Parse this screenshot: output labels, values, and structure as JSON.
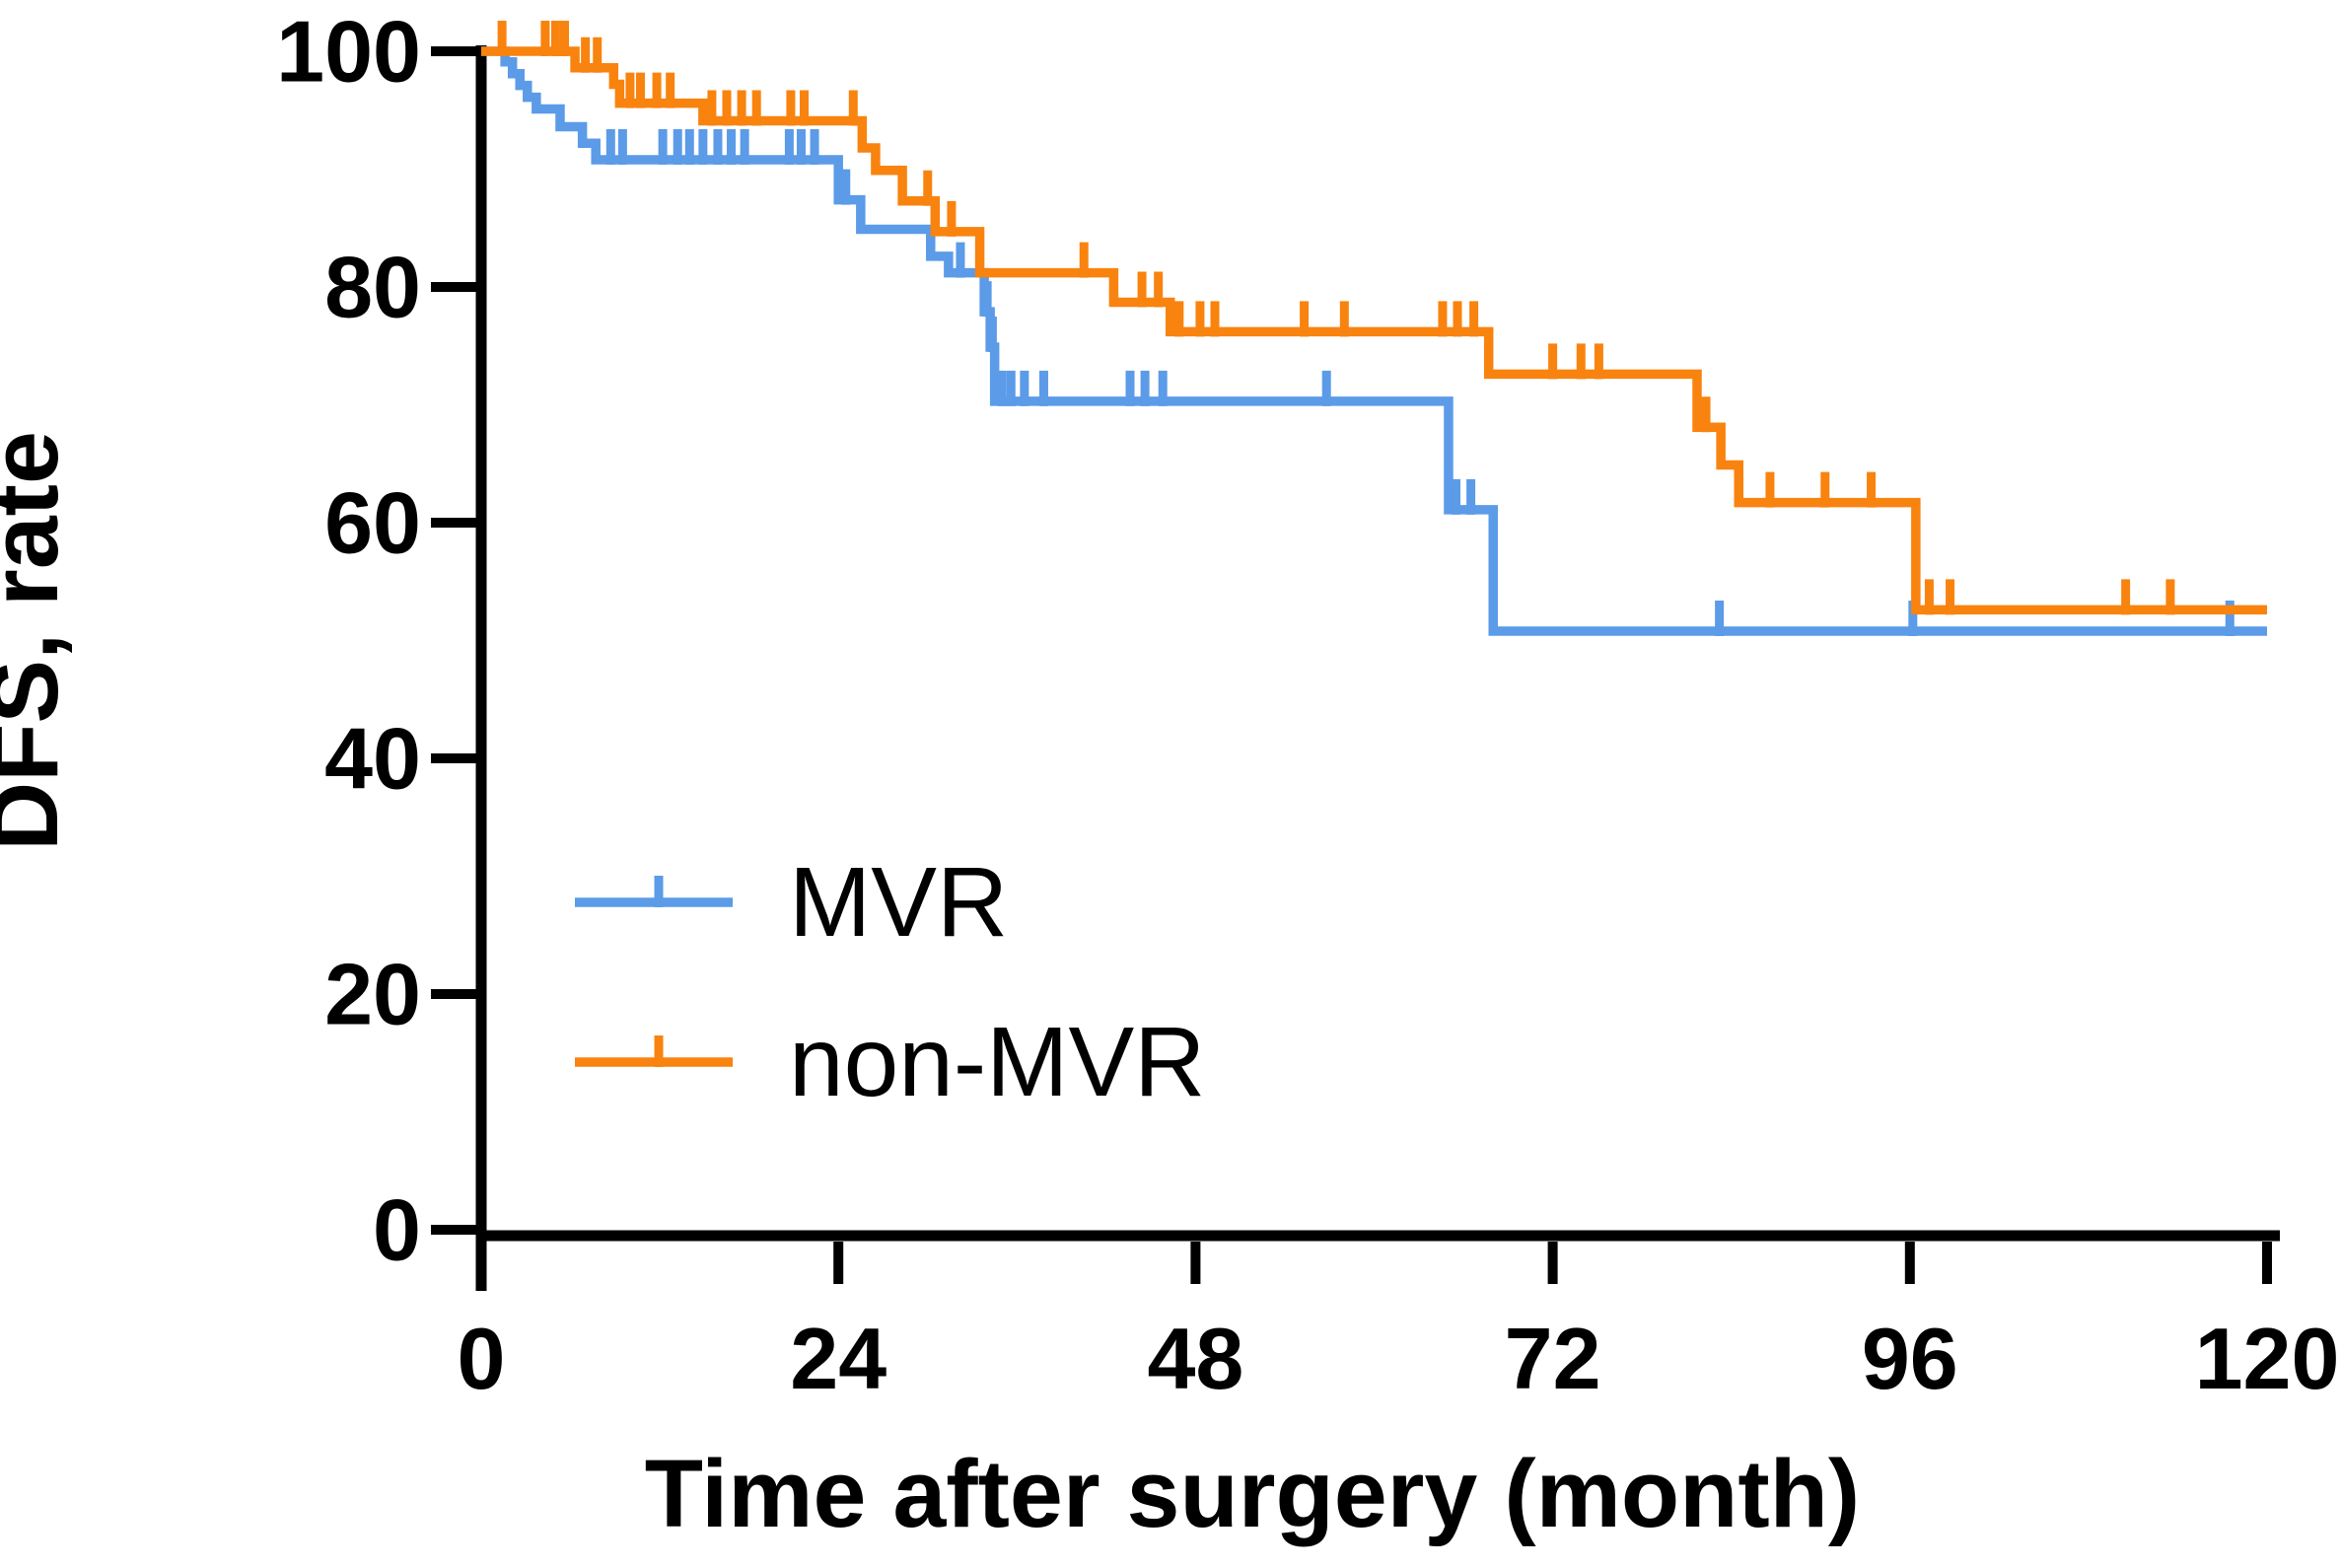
{
  "figure": {
    "description": "Kaplan-Meier disease-free survival curve comparing MVR and non-MVR groups"
  },
  "chart_data": {
    "type": "line",
    "subtype": "kaplan-meier-step",
    "title": "",
    "xlabel": "Time after surgery (month)",
    "ylabel": "DFS, rate",
    "xlim": [
      0,
      120
    ],
    "ylim": [
      0,
      100
    ],
    "x_ticks": [
      0,
      24,
      48,
      72,
      96,
      120
    ],
    "y_ticks": [
      0,
      20,
      40,
      60,
      80,
      100
    ],
    "grid": false,
    "legend_position": "inside-lower-left",
    "axis_color": "#000000",
    "series": [
      {
        "name": "MVR",
        "color": "#5B9BE8",
        "steps": [
          [
            0,
            100
          ],
          [
            1.6,
            99.1
          ],
          [
            2.1,
            98.1
          ],
          [
            2.6,
            97.1
          ],
          [
            3.1,
            96.1
          ],
          [
            3.7,
            95.1
          ],
          [
            5.3,
            93.6
          ],
          [
            6.8,
            92.2
          ],
          [
            7.7,
            90.8
          ],
          [
            24.0,
            87.4
          ],
          [
            25.5,
            84.9
          ],
          [
            30.2,
            82.6
          ],
          [
            31.4,
            81.2
          ],
          [
            33.8,
            77.9
          ],
          [
            34.2,
            74.9
          ],
          [
            34.5,
            70.3
          ],
          [
            65.0,
            61.1
          ],
          [
            68.0,
            50.8
          ],
          [
            120,
            50.8
          ]
        ],
        "censors": [
          [
            8.7,
            90.8
          ],
          [
            9.5,
            90.8
          ],
          [
            12.2,
            90.8
          ],
          [
            13.2,
            90.8
          ],
          [
            14.0,
            90.8
          ],
          [
            14.9,
            90.8
          ],
          [
            15.9,
            90.8
          ],
          [
            16.8,
            90.8
          ],
          [
            17.7,
            90.8
          ],
          [
            20.7,
            90.8
          ],
          [
            21.5,
            90.8
          ],
          [
            22.4,
            90.8
          ],
          [
            24.5,
            87.4
          ],
          [
            32.2,
            81.2
          ],
          [
            34.0,
            77.9
          ],
          [
            34.35,
            74.9
          ],
          [
            35.0,
            70.3
          ],
          [
            35.6,
            70.3
          ],
          [
            36.5,
            70.3
          ],
          [
            37.8,
            70.3
          ],
          [
            43.6,
            70.3
          ],
          [
            44.6,
            70.3
          ],
          [
            45.8,
            70.3
          ],
          [
            56.8,
            70.3
          ],
          [
            65.5,
            61.1
          ],
          [
            66.5,
            61.1
          ],
          [
            83.2,
            50.8
          ],
          [
            96.2,
            50.8
          ],
          [
            117.5,
            50.8
          ]
        ]
      },
      {
        "name": "non-MVR",
        "color": "#F9830F",
        "steps": [
          [
            0,
            100
          ],
          [
            6.3,
            98.6
          ],
          [
            8.9,
            97.2
          ],
          [
            9.3,
            95.6
          ],
          [
            14.9,
            94.1
          ],
          [
            25.6,
            91.8
          ],
          [
            26.5,
            89.9
          ],
          [
            28.3,
            87.3
          ],
          [
            30.5,
            84.7
          ],
          [
            33.5,
            81.2
          ],
          [
            42.5,
            78.7
          ],
          [
            46.3,
            76.2
          ],
          [
            67.7,
            72.6
          ],
          [
            81.7,
            68.1
          ],
          [
            83.3,
            64.9
          ],
          [
            84.5,
            61.7
          ],
          [
            96.4,
            52.6
          ],
          [
            120,
            52.6
          ]
        ],
        "censors": [
          [
            1.4,
            100
          ],
          [
            4.3,
            100
          ],
          [
            5.0,
            100
          ],
          [
            5.6,
            100
          ],
          [
            7.0,
            98.6
          ],
          [
            7.8,
            98.6
          ],
          [
            10.0,
            95.6
          ],
          [
            10.7,
            95.6
          ],
          [
            11.8,
            95.6
          ],
          [
            12.7,
            95.6
          ],
          [
            15.5,
            94.1
          ],
          [
            16.5,
            94.1
          ],
          [
            17.5,
            94.1
          ],
          [
            18.5,
            94.1
          ],
          [
            20.8,
            94.1
          ],
          [
            21.7,
            94.1
          ],
          [
            25.0,
            94.1
          ],
          [
            30.0,
            87.3
          ],
          [
            31.6,
            84.7
          ],
          [
            40.5,
            81.2
          ],
          [
            44.4,
            78.7
          ],
          [
            45.5,
            78.7
          ],
          [
            46.9,
            76.2
          ],
          [
            48.3,
            76.2
          ],
          [
            49.3,
            76.2
          ],
          [
            55.3,
            76.2
          ],
          [
            58.0,
            76.2
          ],
          [
            64.6,
            76.2
          ],
          [
            65.6,
            76.2
          ],
          [
            66.7,
            76.2
          ],
          [
            72.0,
            72.6
          ],
          [
            73.9,
            72.6
          ],
          [
            75.1,
            72.6
          ],
          [
            82.3,
            68.1
          ],
          [
            86.6,
            61.7
          ],
          [
            90.3,
            61.7
          ],
          [
            93.4,
            61.7
          ],
          [
            97.3,
            52.6
          ],
          [
            98.7,
            52.6
          ],
          [
            110.5,
            52.6
          ],
          [
            113.5,
            52.6
          ]
        ]
      }
    ],
    "legend": {
      "items": [
        {
          "label": "MVR",
          "color": "#5B9BE8"
        },
        {
          "label": "non-MVR",
          "color": "#F9830F"
        }
      ]
    }
  }
}
